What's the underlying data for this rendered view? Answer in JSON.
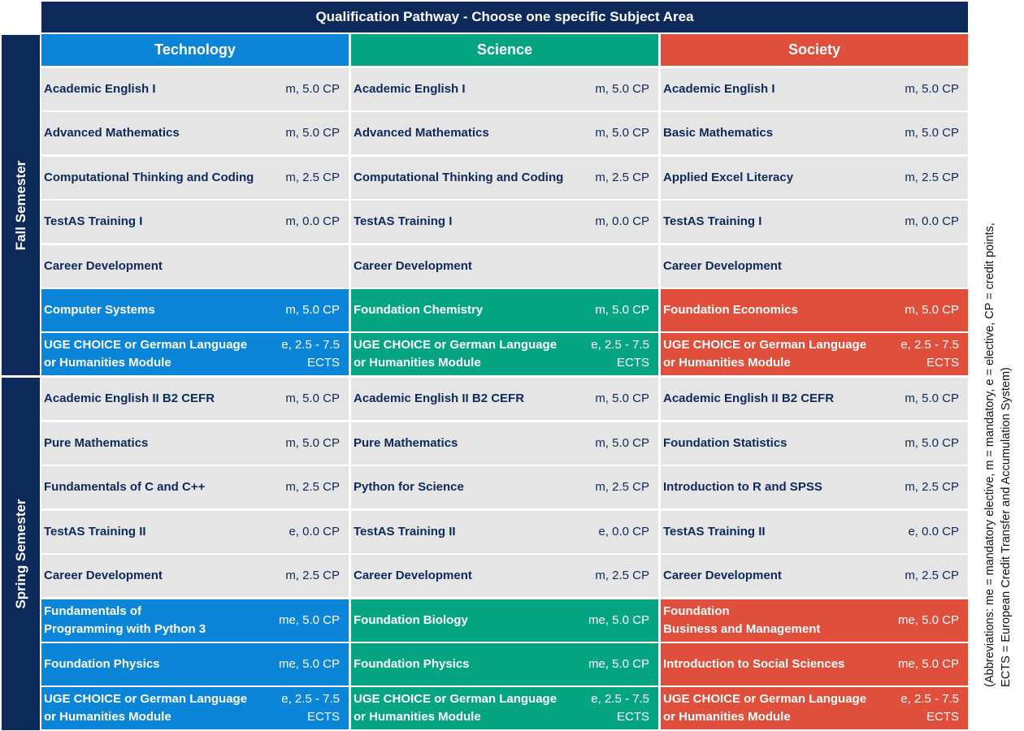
{
  "title": "Qualification Pathway - Choose one specific Subject Area",
  "semesters": {
    "fall": "Fall Semester",
    "spring": "Spring Semester"
  },
  "colors": {
    "navy": "#0e2a5b",
    "technology": "#0b85d8",
    "science": "#05a583",
    "society": "#df4f3b",
    "cell": "#e5e5e5"
  },
  "abbreviations": {
    "line1": "(Abbreviations: me = mandatory elective, m = mandatory, e = elective, CP = credit points,",
    "line2": "ECTS = European Credit Transfer and Accumulation System)"
  },
  "columns": [
    {
      "name": "Technology",
      "rows": [
        {
          "name": "Academic English I",
          "credit": "m, 5.0 CP"
        },
        {
          "name": "Advanced Mathematics",
          "credit": "m, 5.0 CP"
        },
        {
          "name": "Computational Thinking and Coding",
          "credit": "m, 2.5 CP"
        },
        {
          "name": "TestAS Training I",
          "credit": "m, 0.0 CP"
        },
        {
          "name": "Career Development",
          "credit": ""
        },
        {
          "name": "Computer Systems",
          "credit": "m, 5.0 CP"
        },
        {
          "name": "UGE CHOICE or German Language\nor Humanities Module",
          "credit": "e, 2.5 - 7.5\nECTS"
        },
        {
          "name": "Academic English II B2 CEFR",
          "credit": "m, 5.0 CP"
        },
        {
          "name": "Pure Mathematics",
          "credit": "m, 5.0 CP"
        },
        {
          "name": "Fundamentals of C and C++",
          "credit": "m, 2.5 CP"
        },
        {
          "name": "TestAS Training II",
          "credit": "e, 0.0 CP"
        },
        {
          "name": "Career Development",
          "credit": "m, 2.5 CP"
        },
        {
          "name": "Fundamentals of\nProgramming with Python 3",
          "credit": "me, 5.0 CP"
        },
        {
          "name": "Foundation Physics",
          "credit": "me, 5.0 CP"
        },
        {
          "name": "UGE CHOICE or German Language\nor Humanities Module",
          "credit": "e, 2.5 - 7.5\nECTS"
        }
      ]
    },
    {
      "name": "Science",
      "rows": [
        {
          "name": "Academic English I",
          "credit": "m, 5.0 CP"
        },
        {
          "name": "Advanced Mathematics",
          "credit": "m, 5.0 CP"
        },
        {
          "name": "Computational Thinking and Coding",
          "credit": "m, 2.5 CP"
        },
        {
          "name": "TestAS Training I",
          "credit": "m, 0.0 CP"
        },
        {
          "name": "Career Development",
          "credit": ""
        },
        {
          "name": "Foundation Chemistry",
          "credit": "m, 5.0 CP"
        },
        {
          "name": "UGE CHOICE or German Language\nor Humanities Module",
          "credit": "e, 2.5 - 7.5\nECTS"
        },
        {
          "name": "Academic English II B2 CEFR",
          "credit": "m, 5.0 CP"
        },
        {
          "name": "Pure Mathematics",
          "credit": "m, 5.0 CP"
        },
        {
          "name": "Python for Science",
          "credit": "m, 2.5 CP"
        },
        {
          "name": "TestAS Training II",
          "credit": "e, 0.0 CP"
        },
        {
          "name": "Career Development",
          "credit": "m, 2.5 CP"
        },
        {
          "name": "Foundation Biology",
          "credit": "me, 5.0 CP"
        },
        {
          "name": "Foundation Physics",
          "credit": "me, 5.0 CP"
        },
        {
          "name": "UGE CHOICE or German Language\nor Humanities Module",
          "credit": "e, 2.5 - 7.5\nECTS"
        }
      ]
    },
    {
      "name": "Society",
      "rows": [
        {
          "name": "Academic English I",
          "credit": "m, 5.0 CP"
        },
        {
          "name": "Basic Mathematics",
          "credit": "m, 5.0 CP"
        },
        {
          "name": "Applied Excel Literacy",
          "credit": "m, 2.5 CP"
        },
        {
          "name": "TestAS Training I",
          "credit": "m, 0.0 CP"
        },
        {
          "name": "Career Development",
          "credit": ""
        },
        {
          "name": "Foundation Economics",
          "credit": "m, 5.0 CP"
        },
        {
          "name": "UGE CHOICE or German Language\nor Humanities Module",
          "credit": "e, 2.5 - 7.5\nECTS"
        },
        {
          "name": "Academic English II B2 CEFR",
          "credit": "m, 5.0 CP"
        },
        {
          "name": "Foundation Statistics",
          "credit": "m, 5.0 CP"
        },
        {
          "name": "Introduction to R and SPSS",
          "credit": "m, 2.5 CP"
        },
        {
          "name": "TestAS Training II",
          "credit": "e, 0.0 CP"
        },
        {
          "name": "Career Development",
          "credit": "m, 2.5 CP"
        },
        {
          "name": "Foundation\nBusiness and Management",
          "credit": "me, 5.0 CP"
        },
        {
          "name": "Introduction to Social Sciences",
          "credit": "me, 5.0 CP"
        },
        {
          "name": "UGE CHOICE or German Language\nor Humanities Module",
          "credit": "e, 2.5 - 7.5\nECTS"
        }
      ]
    }
  ]
}
